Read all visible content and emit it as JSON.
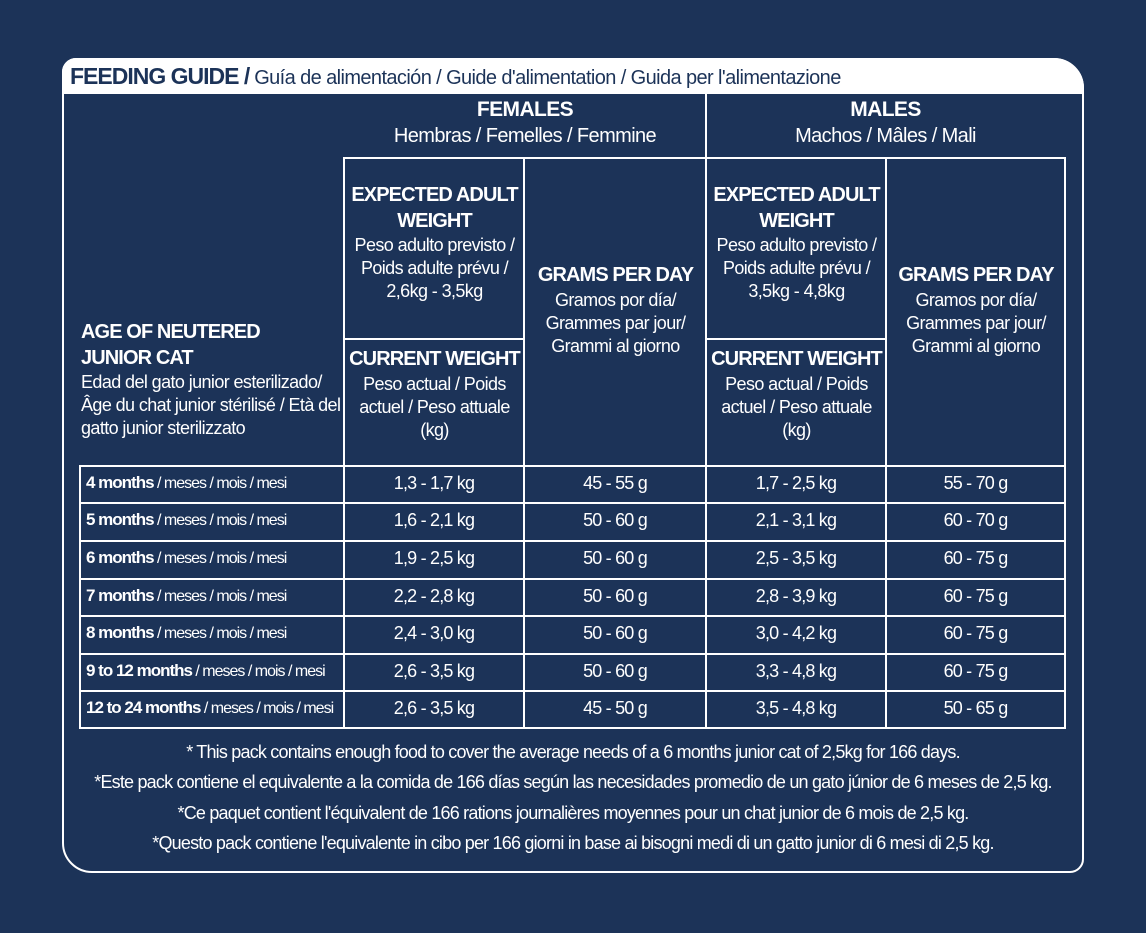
{
  "header": {
    "title_main": "FEEDING GUIDE /",
    "title_sub": " Guía de alimentación / Guide d'alimentation / Guida per l'alimentazione"
  },
  "groups": {
    "females": {
      "label": "FEMALES",
      "sub": "Hembras / Femelles / Femmine"
    },
    "males": {
      "label": "MALES",
      "sub": "Machos / Mâles / Mali"
    }
  },
  "columns": {
    "age": {
      "label": "AGE OF NEUTERED JUNIOR CAT",
      "sub": "Edad del gato junior esterilizado/ Âge du chat junior stérilisé / Età del gatto junior sterilizzato"
    },
    "expected_label": "EXPECTED ADULT WEIGHT",
    "expected_sub": "Peso adulto previsto / Poids adulte prévu /",
    "expected_range_f": "2,6kg - 3,5kg",
    "expected_range_m": "3,5kg - 4,8kg",
    "current_label": "CURRENT WEIGHT",
    "current_sub": "Peso actual / Poids actuel / Peso attuale (kg)",
    "grams_label": "GRAMS PER DAY",
    "grams_sub": "Gramos por día/ Grammes par jour/ Grammi al giorno"
  },
  "rows": [
    {
      "age": "4 months",
      "suffix": " / meses / mois / mesi",
      "f_weight": "1,3 - 1,7 kg",
      "f_grams": "45 - 55 g",
      "m_weight": "1,7 - 2,5 kg",
      "m_grams": "55 - 70 g"
    },
    {
      "age": "5 months",
      "suffix": " / meses / mois / mesi",
      "f_weight": "1,6 - 2,1 kg",
      "f_grams": "50 - 60 g",
      "m_weight": "2,1 - 3,1 kg",
      "m_grams": "60 - 70 g"
    },
    {
      "age": "6 months",
      "suffix": " / meses / mois / mesi",
      "f_weight": "1,9 - 2,5 kg",
      "f_grams": "50 - 60 g",
      "m_weight": "2,5 - 3,5 kg",
      "m_grams": "60 - 75 g"
    },
    {
      "age": "7 months",
      "suffix": " / meses / mois / mesi",
      "f_weight": "2,2 - 2,8 kg",
      "f_grams": "50 - 60 g",
      "m_weight": "2,8 - 3,9 kg",
      "m_grams": "60 - 75 g"
    },
    {
      "age": "8 months",
      "suffix": " / meses / mois / mesi",
      "f_weight": "2,4 - 3,0 kg",
      "f_grams": "50 - 60 g",
      "m_weight": "3,0 - 4,2 kg",
      "m_grams": "60 - 75 g"
    },
    {
      "age": "9 to 12 months",
      "suffix": " / meses / mois / mesi",
      "f_weight": "2,6 - 3,5 kg",
      "f_grams": "50 - 60 g",
      "m_weight": "3,3 - 4,8 kg",
      "m_grams": "60 - 75 g"
    },
    {
      "age": "12 to 24 months",
      "suffix": " / meses / mois / mesi",
      "f_weight": "2,6 - 3,5 kg",
      "f_grams": "45 - 50 g",
      "m_weight": "3,5 - 4,8 kg",
      "m_grams": "50 - 65 g"
    }
  ],
  "footnotes": [
    "* This pack contains enough food to cover the average needs of a  6 months junior cat of 2,5kg for 166 days.",
    "*Este pack contiene el equivalente a la comida de 166 días según las necesidades promedio de un gato júnior de 6 meses de 2,5 kg.",
    "*Ce paquet contient l'équivalent de 166 rations journalières moyennes pour un chat junior de 6 mois de 2,5 kg.",
    "*Questo pack contiene l'equivalente in cibo per 166 giorni in base ai bisogni medi di un gatto junior di 6 mesi di 2,5 kg."
  ],
  "colors": {
    "background": "#1c3358",
    "foreground": "#ffffff"
  }
}
